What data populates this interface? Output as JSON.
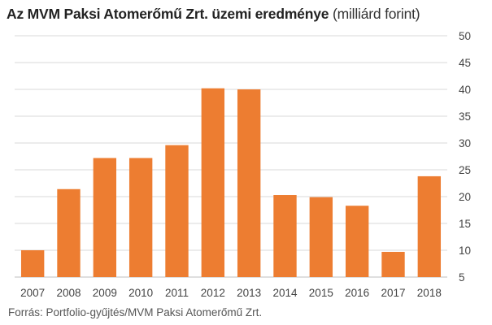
{
  "title": {
    "bold": "Az MVM Paksi Atomerőmű Zrt. üzemi eredménye",
    "light": "(milliárd forint)"
  },
  "source": "Forrás: Portfolio-gyűjtés/MVM Paksi Atomerőmű Zrt.",
  "colors": {
    "bar": "#ed7d31",
    "grid": "#d9d9d9",
    "axis": "#bfbfbf"
  },
  "chart_data": {
    "type": "bar",
    "title": "Az MVM Paksi Atomerőmű Zrt. üzemi eredménye (milliárd forint)",
    "categories": [
      "2007",
      "2008",
      "2009",
      "2010",
      "2011",
      "2012",
      "2013",
      "2014",
      "2015",
      "2016",
      "2017",
      "2018"
    ],
    "values": [
      10.0,
      21.4,
      27.2,
      27.2,
      29.6,
      40.2,
      40.0,
      20.3,
      19.9,
      18.3,
      9.7,
      23.8
    ],
    "ylim": [
      5,
      50
    ],
    "yticks": [
      5,
      10,
      15,
      20,
      25,
      30,
      35,
      40,
      45,
      50
    ],
    "y_axis_side": "right",
    "grid": true,
    "xlabel": "",
    "ylabel": ""
  }
}
